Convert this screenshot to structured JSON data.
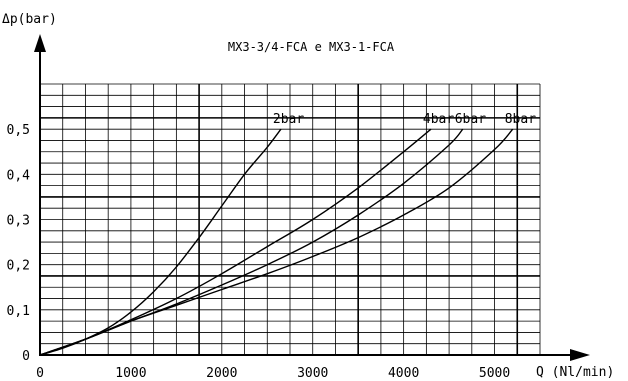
{
  "chart_data": {
    "type": "line",
    "title": "MX3-3/4-FCA e MX3-1-FCA",
    "xlabel": "Q (Nl/min)",
    "ylabel": "Δp(bar)",
    "xlim": [
      0,
      5500
    ],
    "ylim": [
      0,
      0.6
    ],
    "x_ticks": [
      0,
      1000,
      2000,
      3000,
      4000,
      5000
    ],
    "x_tick_labels": [
      "0",
      "1000",
      "2000",
      "3000",
      "4000",
      "5000"
    ],
    "y_ticks": [
      0,
      0.1,
      0.2,
      0.3,
      0.4,
      0.5
    ],
    "y_tick_labels": [
      "0",
      "0,1",
      "0,2",
      "0,3",
      "0,4",
      "0,5"
    ],
    "grid": true,
    "series": [
      {
        "name": "2bar",
        "x": [
          0,
          250,
          500,
          750,
          1000,
          1250,
          1500,
          1750,
          2000,
          2250,
          2500,
          2650
        ],
        "y": [
          0,
          0.015,
          0.035,
          0.06,
          0.095,
          0.14,
          0.195,
          0.26,
          0.33,
          0.4,
          0.46,
          0.5
        ]
      },
      {
        "name": "4bar",
        "x": [
          0,
          500,
          1000,
          1500,
          2000,
          2500,
          3000,
          3500,
          4000,
          4300
        ],
        "y": [
          0,
          0.035,
          0.078,
          0.125,
          0.18,
          0.24,
          0.3,
          0.37,
          0.45,
          0.5
        ]
      },
      {
        "name": "6bar",
        "x": [
          0,
          500,
          1000,
          1500,
          2000,
          2500,
          3000,
          3500,
          4000,
          4500,
          4650
        ],
        "y": [
          0,
          0.035,
          0.075,
          0.113,
          0.155,
          0.2,
          0.25,
          0.31,
          0.38,
          0.465,
          0.5
        ]
      },
      {
        "name": "8bar",
        "x": [
          0,
          500,
          1000,
          1500,
          2000,
          2500,
          3000,
          3500,
          4000,
          4500,
          5000,
          5200
        ],
        "y": [
          0,
          0.035,
          0.075,
          0.11,
          0.145,
          0.18,
          0.218,
          0.26,
          0.31,
          0.37,
          0.455,
          0.5
        ]
      }
    ]
  }
}
